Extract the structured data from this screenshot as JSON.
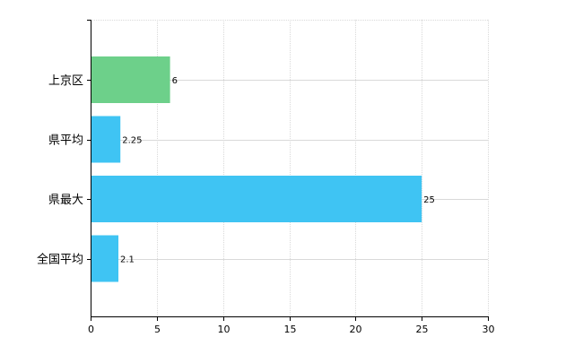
{
  "chart_data": {
    "type": "bar",
    "orientation": "horizontal",
    "categories": [
      "上京区",
      "県平均",
      "県最大",
      "全国平均"
    ],
    "values": [
      6,
      2.25,
      25,
      2.1
    ],
    "data_labels": [
      "6",
      "2.25",
      "25",
      "2.1"
    ],
    "xlim": [
      0,
      30
    ],
    "x_ticks": [
      0,
      5,
      10,
      15,
      20,
      25,
      30
    ],
    "x_tick_labels": [
      "0",
      "5",
      "10",
      "15",
      "20",
      "25",
      "30"
    ],
    "grid": true,
    "bar_colors": [
      "#6dd08a",
      "#3fc4f3",
      "#3fc4f3",
      "#3fc4f3"
    ],
    "colors": {
      "highlight": "#6dd08a",
      "default": "#3fc4f3",
      "grid": "#d9d9d9",
      "axis": "#000000",
      "text": "#000000"
    }
  }
}
